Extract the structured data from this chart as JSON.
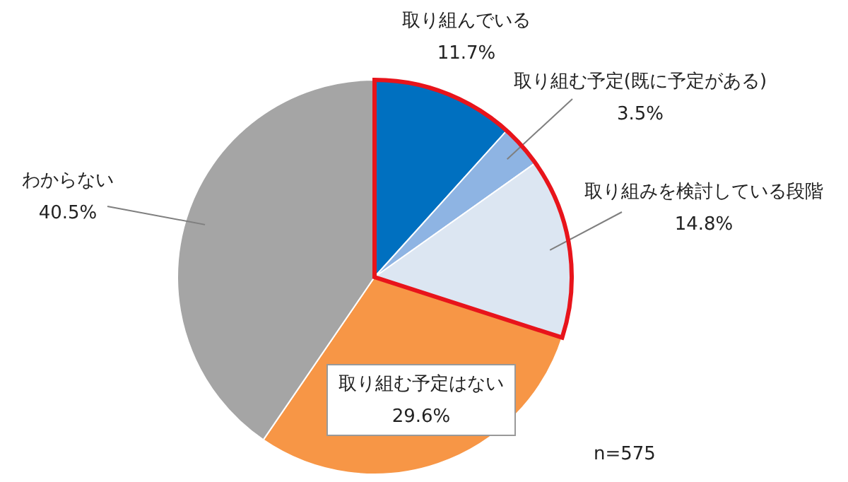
{
  "chart_data": {
    "type": "pie",
    "categories": [
      "取り組んでいる",
      "取り組む予定(既に予定がある)",
      "取り組みを検討している段階",
      "取り組む予定はない",
      "わからない"
    ],
    "values": [
      11.7,
      3.5,
      14.8,
      29.6,
      40.5
    ],
    "value_labels": [
      "11.7%",
      "3.5%",
      "14.8%",
      "29.6%",
      "40.5%"
    ],
    "colors": [
      "#0070c0",
      "#8eb4e3",
      "#dce6f2",
      "#f79646",
      "#a5a5a5"
    ],
    "annotations": [
      "n=575"
    ],
    "legend": false
  }
}
